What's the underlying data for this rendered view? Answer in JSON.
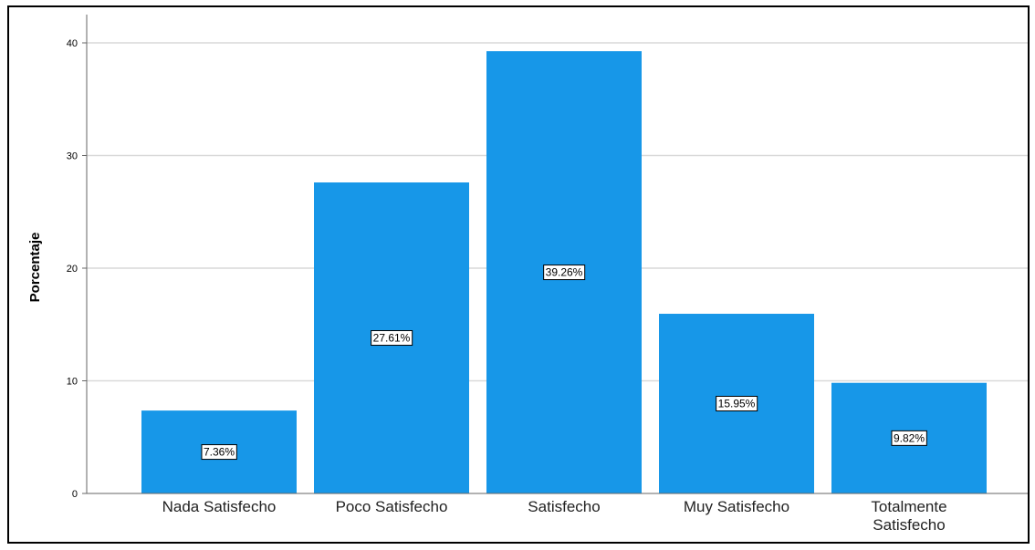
{
  "chart_data": {
    "type": "bar",
    "title": "",
    "xlabel": "",
    "ylabel": "Porcentaje",
    "categories": [
      [
        "Nada Satisfecho"
      ],
      [
        "Poco Satisfecho"
      ],
      [
        "Satisfecho"
      ],
      [
        "Muy Satisfecho"
      ],
      [
        "Totalmente",
        "Satisfecho"
      ]
    ],
    "values": [
      7.36,
      27.61,
      39.26,
      15.95,
      9.82
    ],
    "data_labels": [
      "7.36%",
      "27.61%",
      "39.26%",
      "15.95%",
      "9.82%"
    ],
    "yticks": [
      0,
      10,
      20,
      30,
      40
    ],
    "ylim": [
      0,
      42
    ],
    "grid": true,
    "legend": "none",
    "colors": {
      "bar": "#1797E8",
      "grid": "#D9D9D9",
      "axis": "#666666",
      "label_box_border": "#000000"
    }
  }
}
